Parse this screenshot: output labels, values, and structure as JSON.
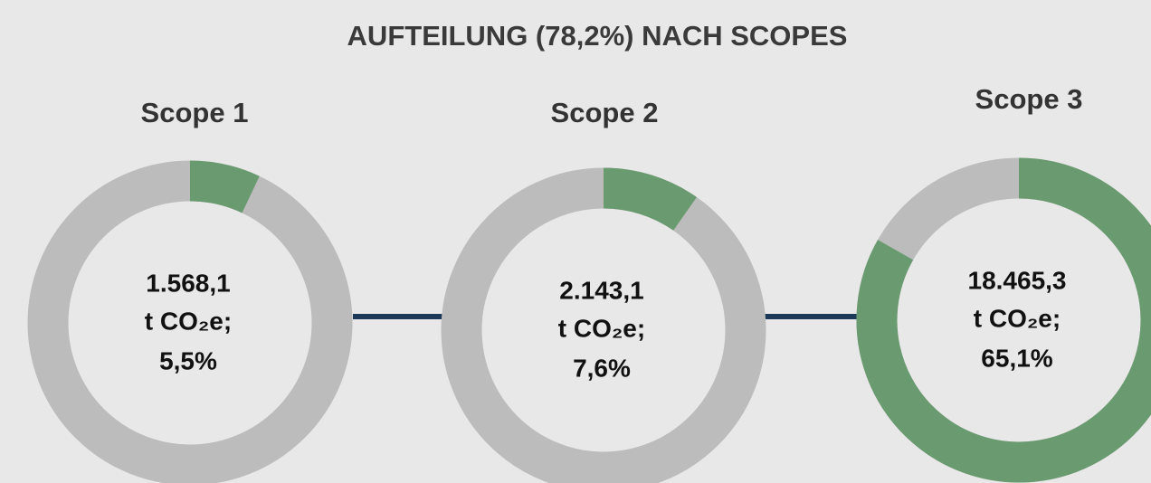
{
  "chart_data": {
    "type": "donut",
    "title": "AUFTEILUNG (78,2%) NACH SCOPES",
    "total": 78.2,
    "categories": [
      "Scope 1",
      "Scope 2",
      "Scope 3"
    ],
    "values": [
      5.5,
      7.6,
      65.1
    ],
    "value_labels": [
      "5,5%",
      "7,6%",
      "65,1%"
    ],
    "amounts": [
      1568.1,
      2143.1,
      18465.3
    ],
    "amount_labels": [
      "1.568,1",
      "2.143,1",
      "18.465,3"
    ],
    "unit": "t CO₂e;",
    "color": "#6a9a6f",
    "rest_color": "#bcbcbc"
  }
}
